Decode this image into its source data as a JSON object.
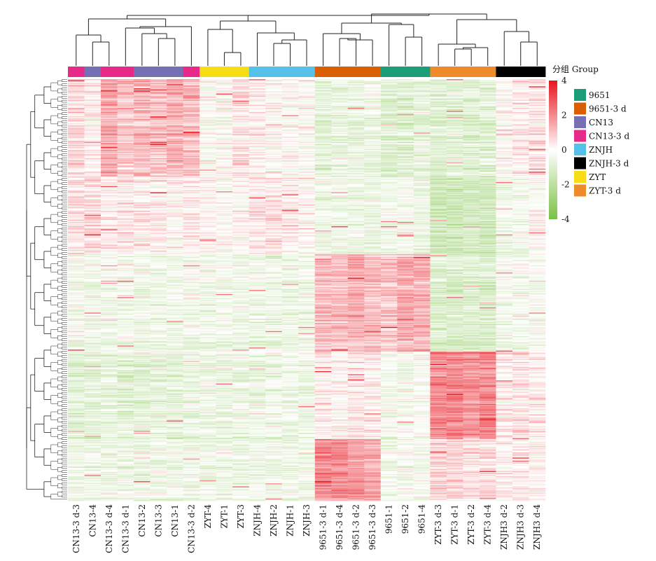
{
  "chart_data": {
    "type": "heatmap",
    "title": "",
    "columns": [
      {
        "label": "CN13-3 d-3",
        "group": "CN13-3 d"
      },
      {
        "label": "CN13-4",
        "group": "CN13"
      },
      {
        "label": "CN13-3 d-4",
        "group": "CN13-3 d"
      },
      {
        "label": "CN13-3 d-1",
        "group": "CN13-3 d"
      },
      {
        "label": "CN13-2",
        "group": "CN13"
      },
      {
        "label": "CN13-3",
        "group": "CN13"
      },
      {
        "label": "CN13-1",
        "group": "CN13"
      },
      {
        "label": "CN13-3 d-2",
        "group": "CN13-3 d"
      },
      {
        "label": "ZYT-4",
        "group": "ZYT"
      },
      {
        "label": "ZYT-1",
        "group": "ZYT"
      },
      {
        "label": "ZYT-3",
        "group": "ZYT"
      },
      {
        "label": "ZNJH-4",
        "group": "ZNJH"
      },
      {
        "label": "ZNJH-2",
        "group": "ZNJH"
      },
      {
        "label": "ZNJH-1",
        "group": "ZNJH"
      },
      {
        "label": "ZNJH-3",
        "group": "ZNJH"
      },
      {
        "label": "9651-3 d-1",
        "group": "9651-3 d"
      },
      {
        "label": "9651-3 d-4",
        "group": "9651-3 d"
      },
      {
        "label": "9651-3 d-2",
        "group": "9651-3 d"
      },
      {
        "label": "9651-3 d-3",
        "group": "9651-3 d"
      },
      {
        "label": "9651-1",
        "group": "9651"
      },
      {
        "label": "9651-2",
        "group": "9651"
      },
      {
        "label": "9651-4",
        "group": "9651"
      },
      {
        "label": "ZYT-3 d-3",
        "group": "ZYT-3 d"
      },
      {
        "label": "ZYT-3 d-1",
        "group": "ZYT-3 d"
      },
      {
        "label": "ZYT-3 d-2",
        "group": "ZYT-3 d"
      },
      {
        "label": "ZYT-3 d-4",
        "group": "ZYT-3 d"
      },
      {
        "label": "ZNJH3 d-2",
        "group": "ZNJH-3 d"
      },
      {
        "label": "ZNJH3 d-3",
        "group": "ZNJH-3 d"
      },
      {
        "label": "ZNJH3 d-4",
        "group": "ZNJH-3 d"
      }
    ],
    "groups": [
      {
        "name": "9651",
        "color": "#1b9e77"
      },
      {
        "name": "9651-3 d",
        "color": "#d95f02"
      },
      {
        "name": "CN13",
        "color": "#7570b3"
      },
      {
        "name": "CN13-3 d",
        "color": "#e7298a"
      },
      {
        "name": "ZNJH",
        "color": "#56c1e8"
      },
      {
        "name": "ZNJH-3 d",
        "color": "#000000"
      },
      {
        "name": "ZYT",
        "color": "#f7dc16"
      },
      {
        "name": "ZYT-3 d",
        "color": "#ef8a2a"
      }
    ],
    "legend_title": "分组 Group",
    "color_scale": {
      "min": -4,
      "max": 4,
      "ticks": [
        4,
        2,
        0,
        -2,
        -4
      ],
      "colors": [
        "#7ac142",
        "#ffffff",
        "#e8141e"
      ]
    },
    "row_clusters": [
      {
        "rows": 95,
        "means": [
          0.4,
          0.2,
          0.9,
          0.6,
          0.7,
          0.6,
          0.8,
          0.7,
          -0.1,
          0.0,
          0.3,
          0.2,
          0.0,
          0.0,
          0.0,
          -0.5,
          -0.4,
          -0.4,
          -0.3,
          -0.6,
          -0.6,
          -0.5,
          -0.6,
          -0.5,
          -0.6,
          -0.5,
          0.0,
          0.2,
          0.3
        ]
      },
      {
        "rows": 75,
        "means": [
          0.3,
          0.4,
          0.2,
          0.3,
          0.2,
          0.2,
          0.1,
          0.2,
          0.1,
          0.0,
          0.1,
          0.3,
          0.3,
          0.2,
          0.1,
          -0.3,
          -0.2,
          -0.3,
          -0.3,
          -0.2,
          -0.2,
          -0.3,
          -0.9,
          -0.9,
          -0.8,
          -0.8,
          -0.3,
          -0.2,
          0.0
        ]
      },
      {
        "rows": 95,
        "means": [
          -0.2,
          -0.3,
          -0.2,
          -0.2,
          -0.2,
          -0.3,
          -0.3,
          -0.2,
          -0.3,
          -0.2,
          -0.2,
          -0.3,
          -0.3,
          -0.3,
          -0.3,
          0.7,
          0.7,
          0.9,
          0.7,
          0.6,
          0.9,
          0.8,
          -0.6,
          -0.6,
          -0.6,
          -0.6,
          -0.2,
          -0.2,
          -0.1
        ]
      },
      {
        "rows": 85,
        "means": [
          -0.5,
          -0.5,
          -0.4,
          -0.5,
          -0.5,
          -0.4,
          -0.4,
          -0.4,
          -0.3,
          -0.3,
          -0.3,
          -0.3,
          -0.3,
          -0.3,
          -0.3,
          0.2,
          0.1,
          0.3,
          0.2,
          -0.2,
          -0.2,
          -0.1,
          1.2,
          1.3,
          1.2,
          1.3,
          0.2,
          0.3,
          0.2
        ]
      },
      {
        "rows": 60,
        "means": [
          -0.3,
          -0.3,
          -0.3,
          -0.3,
          -0.3,
          -0.3,
          -0.3,
          -0.3,
          -0.3,
          -0.3,
          -0.3,
          -0.3,
          -0.3,
          -0.3,
          -0.3,
          1.2,
          1.2,
          1.1,
          0.9,
          -0.3,
          -0.2,
          -0.2,
          0.4,
          0.4,
          0.3,
          0.3,
          0.1,
          0.2,
          0.1
        ]
      }
    ]
  }
}
